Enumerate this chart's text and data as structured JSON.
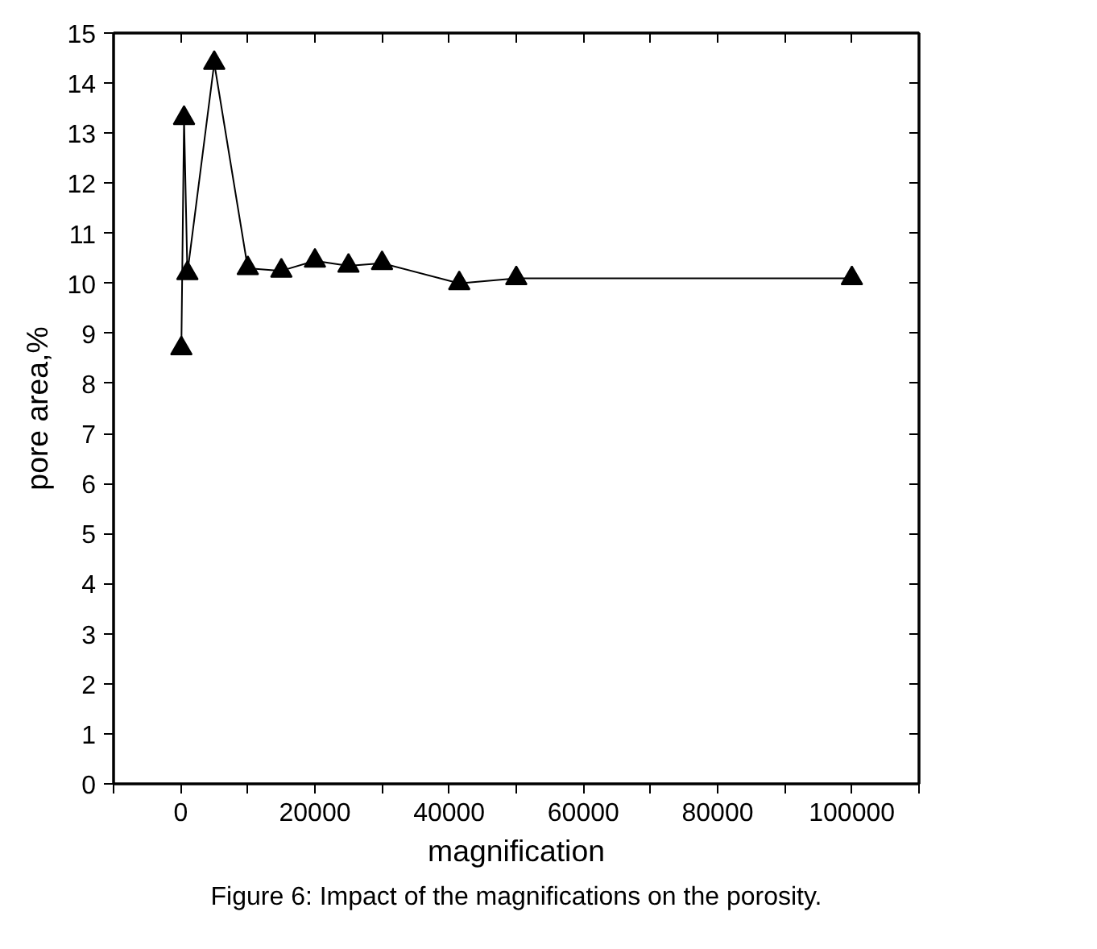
{
  "chart_data": {
    "type": "line",
    "xlabel": "magnification",
    "ylabel": "pore area,%",
    "marker": "triangle",
    "line_style": "solid",
    "grid": false,
    "x": [
      100,
      500,
      1000,
      5000,
      10000,
      15000,
      20000,
      25000,
      30000,
      41500,
      50000,
      100000
    ],
    "series": [
      {
        "color": "#000000",
        "values": [
          8.7,
          13.3,
          10.2,
          14.4,
          10.3,
          10.25,
          10.45,
          10.35,
          10.4,
          10.0,
          10.1,
          10.1
        ]
      }
    ],
    "xlim": [
      -10000,
      110000
    ],
    "ylim": [
      0,
      15
    ],
    "xticks": [
      {
        "value": -10000,
        "label": null
      },
      0,
      {
        "value": 10000,
        "label": null
      },
      20000,
      {
        "value": 30000,
        "label": null
      },
      40000,
      {
        "value": 50000,
        "label": null
      },
      60000,
      {
        "value": 70000,
        "label": null
      },
      80000,
      {
        "value": 90000,
        "label": null
      },
      100000,
      {
        "value": 110000,
        "label": null
      }
    ],
    "yticks": [
      0,
      1,
      2,
      3,
      4,
      5,
      6,
      7,
      8,
      9,
      10,
      11,
      12,
      13,
      14,
      15
    ],
    "annotations": [
      "Figure 6: Impact of the magnifications on the porosity."
    ]
  }
}
